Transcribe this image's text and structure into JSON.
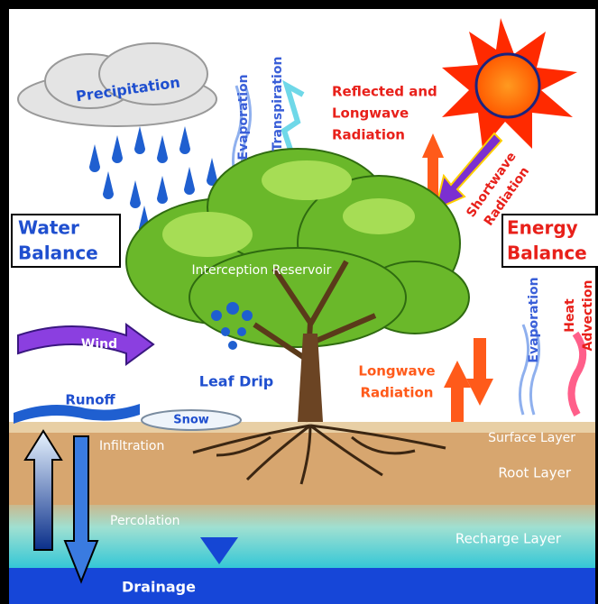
{
  "labels": {
    "precipitation": "Precipitation",
    "evaporation_left": "Evaporation",
    "transpiration": "Transpiration",
    "reflected": [
      "Reflected and",
      "Longwave",
      "Radiation"
    ],
    "shortwave": [
      "Shortwave",
      "Radiation"
    ],
    "water_balance": [
      "Water",
      "Balance"
    ],
    "energy_balance": [
      "Energy",
      "Balance"
    ],
    "interception": "Interception Reservoir",
    "wind": "Wind",
    "leaf_drip": "Leaf Drip",
    "runoff": "Runoff",
    "snow": "Snow",
    "longwave": [
      "Longwave",
      "Radiation"
    ],
    "evaporation_right": "Evaporation",
    "heat_advection": [
      "Heat",
      "Advection"
    ],
    "surface_layer": "Surface Layer",
    "root_layer": "Root Layer",
    "infiltration": "Infiltration",
    "percolation": "Percolation",
    "recharge_layer": "Recharge Layer",
    "drainage": "Drainage"
  }
}
